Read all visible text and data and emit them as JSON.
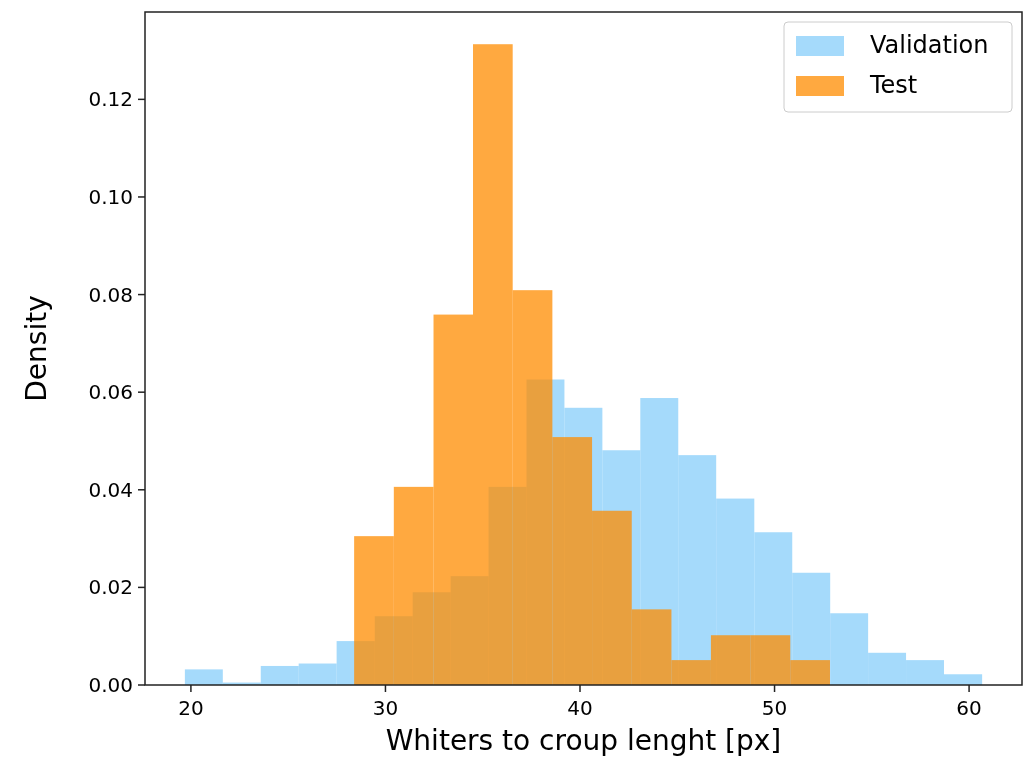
{
  "chart_data": {
    "type": "histogram",
    "xlabel": "Whiters to croup lenght [px]",
    "ylabel": "Density",
    "xlim": [
      17.64,
      62.72
    ],
    "xticks": [
      20,
      30,
      40,
      50,
      60
    ],
    "ylim": [
      0,
      0.1379
    ],
    "yticks": [
      {
        "value": 0,
        "label": "0.00"
      },
      {
        "value": 0.02,
        "label": "0.02"
      },
      {
        "value": 0.04,
        "label": "0.04"
      },
      {
        "value": 0.06,
        "label": "0.06"
      },
      {
        "value": 0.08,
        "label": "0.08"
      },
      {
        "value": 0.1,
        "label": "0.10"
      },
      {
        "value": 0.12,
        "label": "0.12"
      }
    ],
    "grid": false,
    "legend": "top right",
    "bins": [
      19.69,
      21.64,
      23.59,
      25.54,
      27.49,
      29.45,
      31.4,
      33.35,
      35.3,
      37.25,
      39.2,
      41.15,
      43.1,
      45.05,
      47.0,
      48.96,
      50.91,
      52.86,
      54.81,
      56.76,
      58.71,
      60.67
    ],
    "series": [
      {
        "name": "Validation",
        "color": "#87cefa",
        "values": [
          0.0032,
          0.0005,
          0.0039,
          0.0044,
          0.009,
          0.0141,
          0.019,
          0.0223,
          0.0406,
          0.0626,
          0.0568,
          0.0481,
          0.0588,
          0.0471,
          0.0382,
          0.0313,
          0.023,
          0.0147,
          0.0066,
          0.0051,
          0.0022
        ]
      },
      {
        "name": "Test",
        "color": "#ff8c00",
        "bins": [
          28.39,
          30.43,
          32.47,
          34.5,
          36.54,
          38.58,
          40.62,
          42.66,
          44.7,
          46.73,
          48.77,
          50.81,
          52.85
        ],
        "values": [
          0.0305,
          0.0406,
          0.0759,
          0.1313,
          0.0809,
          0.0508,
          0.0357,
          0.0155,
          0.0051,
          0.0102,
          0.0102,
          0.0051
        ]
      }
    ]
  }
}
